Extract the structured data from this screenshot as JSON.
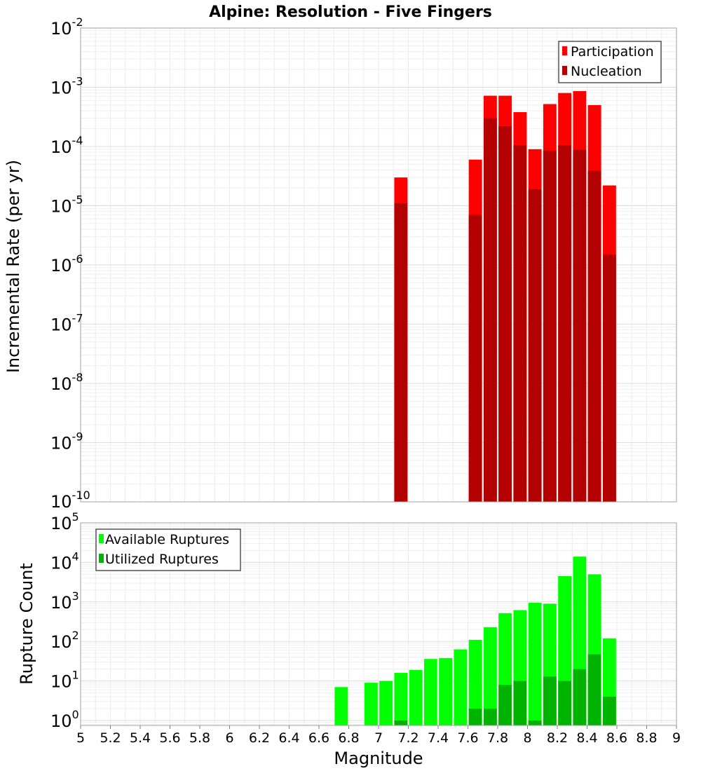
{
  "chart_title": "Alpine: Resolution - Five Fingers",
  "x_axis": {
    "label": "Magnitude",
    "ticks": [
      "5",
      "5.2",
      "5.4",
      "5.6",
      "5.8",
      "6",
      "6.2",
      "6.4",
      "6.6",
      "6.8",
      "7",
      "7.2",
      "7.4",
      "7.6",
      "7.8",
      "8",
      "8.2",
      "8.4",
      "8.6",
      "8.8",
      "9"
    ]
  },
  "chart_data": [
    {
      "type": "bar",
      "ylabel": "Incremental Rate (per yr)",
      "y_scale": "log",
      "ylim": [
        1e-10,
        0.01
      ],
      "xlim": [
        5,
        9
      ],
      "grid": true,
      "legend_position": "top-right",
      "y_tick_exponents": [
        "-2",
        "-3",
        "-4",
        "-5",
        "-6",
        "-7",
        "-8",
        "-9",
        "-10"
      ],
      "bar_width": 0.1,
      "x": [
        7.1,
        7.6,
        7.7,
        7.8,
        7.9,
        8.0,
        8.1,
        8.2,
        8.3,
        8.4,
        8.5
      ],
      "series": [
        {
          "name": "Participation",
          "color": "#ff0000",
          "values": [
            3e-05,
            6e-05,
            0.00072,
            0.00072,
            0.00038,
            9e-05,
            0.00052,
            0.0008,
            0.00086,
            0.0005,
            2.2e-05
          ]
        },
        {
          "name": "Nucleation",
          "color": "#b30000",
          "values": [
            1.1e-05,
            7e-06,
            0.0003,
            0.00022,
            0.000105,
            1.9e-05,
            8.5e-05,
            0.000105,
            8.8e-05,
            3.9e-05,
            1.5e-06
          ]
        }
      ]
    },
    {
      "type": "bar",
      "ylabel": "Rupture Count",
      "y_scale": "log",
      "ylim": [
        0.75,
        100000.0
      ],
      "xlim": [
        5,
        9
      ],
      "grid": true,
      "legend_position": "top-left",
      "y_tick_exponents": [
        "0",
        "1",
        "2",
        "3",
        "4",
        "5"
      ],
      "bar_width": 0.1,
      "x": [
        6.7,
        6.9,
        7.0,
        7.1,
        7.2,
        7.3,
        7.4,
        7.5,
        7.6,
        7.7,
        7.8,
        7.9,
        8.0,
        8.1,
        8.2,
        8.3,
        8.4,
        8.5
      ],
      "series": [
        {
          "name": "Available Ruptures",
          "color": "#00ff00",
          "values": [
            7,
            9,
            10,
            16,
            19,
            36,
            38,
            63,
            110,
            230,
            520,
            620,
            950,
            900,
            4500,
            14000,
            5000,
            120
          ]
        },
        {
          "name": "Utilized Ruptures",
          "color": "#00b300",
          "values": [
            0,
            0,
            0,
            1,
            0,
            0,
            0,
            0,
            2,
            2,
            8,
            10,
            1,
            13,
            10,
            20,
            47,
            4
          ]
        }
      ]
    }
  ]
}
